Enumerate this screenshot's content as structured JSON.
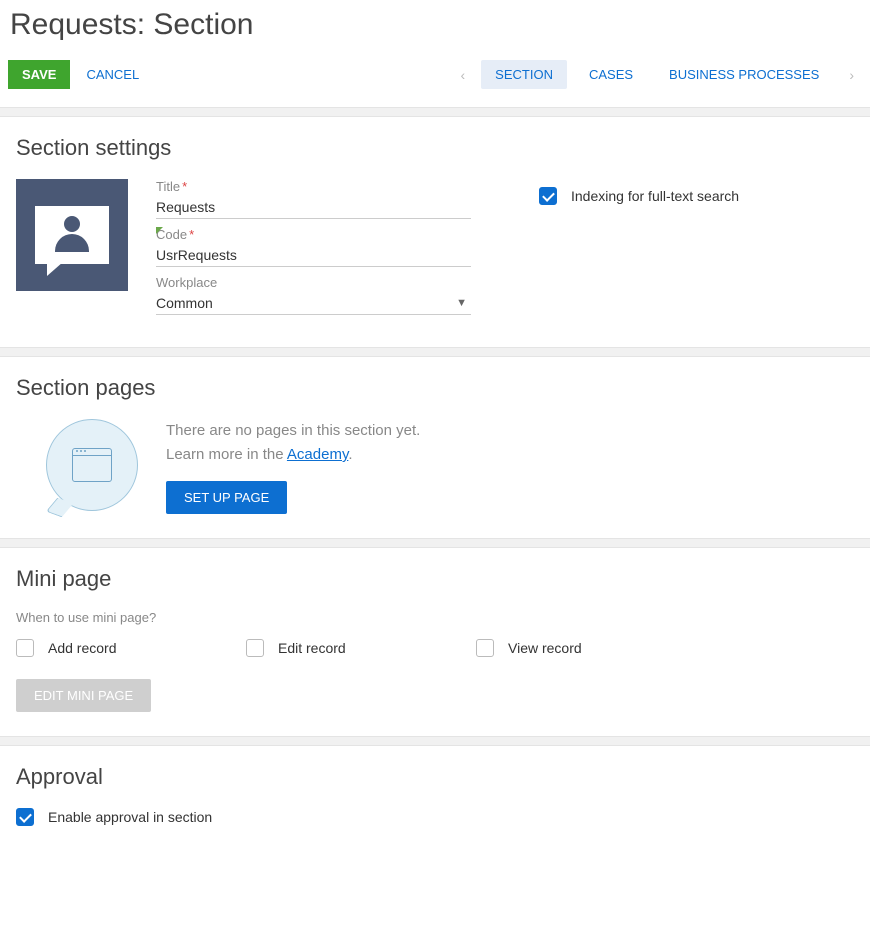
{
  "page_title": "Requests: Section",
  "toolbar": {
    "save_label": "SAVE",
    "cancel_label": "CANCEL"
  },
  "tabs": {
    "section": "SECTION",
    "cases": "CASES",
    "business_processes": "BUSINESS PROCESSES"
  },
  "settings": {
    "heading": "Section settings",
    "title_label": "Title",
    "title_value": "Requests",
    "code_label": "Code",
    "code_value": "UsrRequests",
    "workplace_label": "Workplace",
    "workplace_value": "Common",
    "indexing_label": "Indexing for full-text search",
    "indexing_checked": true
  },
  "pages": {
    "heading": "Section pages",
    "empty_line1": "There are no pages in this section yet.",
    "empty_line2_prefix": "Learn more in the ",
    "academy_link": "Academy",
    "setup_label": "SET UP PAGE"
  },
  "mini": {
    "heading": "Mini page",
    "when_label": "When to use mini page?",
    "add_record": "Add record",
    "edit_record": "Edit record",
    "view_record": "View record",
    "edit_button": "EDIT MINI PAGE"
  },
  "approval": {
    "heading": "Approval",
    "enable_label": "Enable approval in section",
    "enable_checked": true
  },
  "colors": {
    "primary": "#0d6fd1",
    "save_green": "#3fa52e",
    "tile_bg": "#4a5875",
    "disabled": "#cfcfcf"
  }
}
